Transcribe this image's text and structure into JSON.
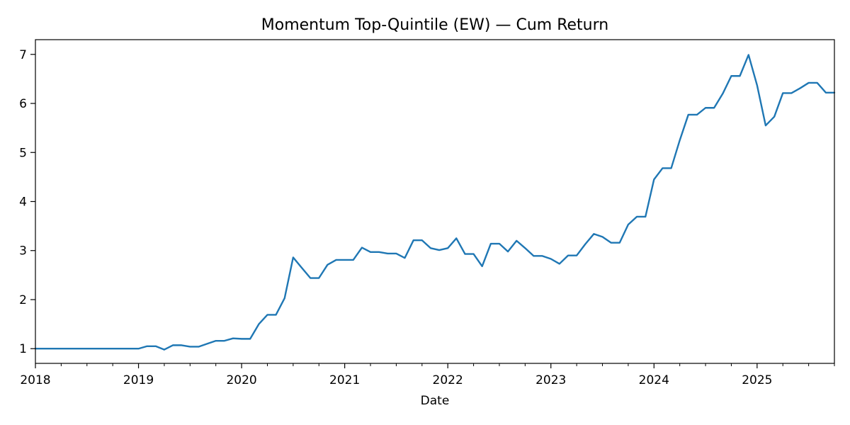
{
  "chart_data": {
    "type": "line",
    "title": "Momentum Top-Quintile (EW) — Cum Return",
    "xlabel": "Date",
    "ylabel": "",
    "xlim": [
      2018.0,
      2025.75
    ],
    "ylim": [
      0.7,
      7.3
    ],
    "x_ticks": [
      2018,
      2019,
      2020,
      2021,
      2022,
      2023,
      2024,
      2025
    ],
    "x_tick_labels": [
      "2018",
      "2019",
      "2020",
      "2021",
      "2022",
      "2023",
      "2024",
      "2025"
    ],
    "y_ticks": [
      1,
      2,
      3,
      4,
      5,
      6,
      7
    ],
    "y_tick_labels": [
      "1",
      "2",
      "3",
      "4",
      "5",
      "6",
      "7"
    ],
    "grid": false,
    "color": "#1f77b4",
    "series": [
      {
        "name": "Cum Return",
        "x": [
          2018.0,
          2018.083,
          2018.167,
          2018.25,
          2018.333,
          2018.417,
          2018.5,
          2018.583,
          2018.667,
          2018.75,
          2018.833,
          2018.917,
          2019.0,
          2019.083,
          2019.167,
          2019.25,
          2019.333,
          2019.417,
          2019.5,
          2019.583,
          2019.667,
          2019.75,
          2019.833,
          2019.917,
          2020.0,
          2020.083,
          2020.167,
          2020.25,
          2020.333,
          2020.417,
          2020.5,
          2020.583,
          2020.667,
          2020.75,
          2020.833,
          2020.917,
          2021.0,
          2021.083,
          2021.167,
          2021.25,
          2021.333,
          2021.417,
          2021.5,
          2021.583,
          2021.667,
          2021.75,
          2021.833,
          2021.917,
          2022.0,
          2022.083,
          2022.167,
          2022.25,
          2022.333,
          2022.417,
          2022.5,
          2022.583,
          2022.667,
          2022.75,
          2022.833,
          2022.917,
          2023.0,
          2023.083,
          2023.167,
          2023.25,
          2023.333,
          2023.417,
          2023.5,
          2023.583,
          2023.667,
          2023.75,
          2023.833,
          2023.917,
          2024.0,
          2024.083,
          2024.167,
          2024.25,
          2024.333,
          2024.417,
          2024.5,
          2024.583,
          2024.667,
          2024.75,
          2024.833,
          2024.917,
          2025.0,
          2025.083,
          2025.167,
          2025.25,
          2025.333,
          2025.417,
          2025.5,
          2025.583,
          2025.667,
          2025.75
        ],
        "values": [
          1.0,
          1.0,
          1.0,
          1.0,
          1.0,
          1.0,
          1.0,
          1.0,
          1.0,
          1.0,
          1.0,
          1.0,
          1.0,
          1.05,
          1.05,
          0.98,
          1.07,
          1.07,
          1.04,
          1.04,
          1.1,
          1.16,
          1.16,
          1.21,
          1.2,
          1.2,
          1.5,
          1.69,
          1.69,
          2.03,
          2.86,
          2.65,
          2.44,
          2.44,
          2.71,
          2.81,
          2.81,
          2.81,
          3.06,
          2.97,
          2.97,
          2.94,
          2.94,
          2.85,
          3.21,
          3.21,
          3.05,
          3.01,
          3.05,
          3.25,
          2.93,
          2.93,
          2.68,
          3.14,
          3.14,
          2.98,
          3.2,
          3.05,
          2.89,
          2.89,
          2.83,
          2.73,
          2.9,
          2.9,
          3.13,
          3.34,
          3.28,
          3.16,
          3.16,
          3.53,
          3.69,
          3.69,
          4.45,
          4.68,
          4.68,
          5.25,
          5.77,
          5.77,
          5.91,
          5.91,
          6.2,
          6.56,
          6.56,
          6.99,
          6.37,
          5.55,
          5.73,
          6.21,
          6.21,
          6.31,
          6.42,
          6.42,
          6.22,
          6.22
        ]
      }
    ]
  }
}
